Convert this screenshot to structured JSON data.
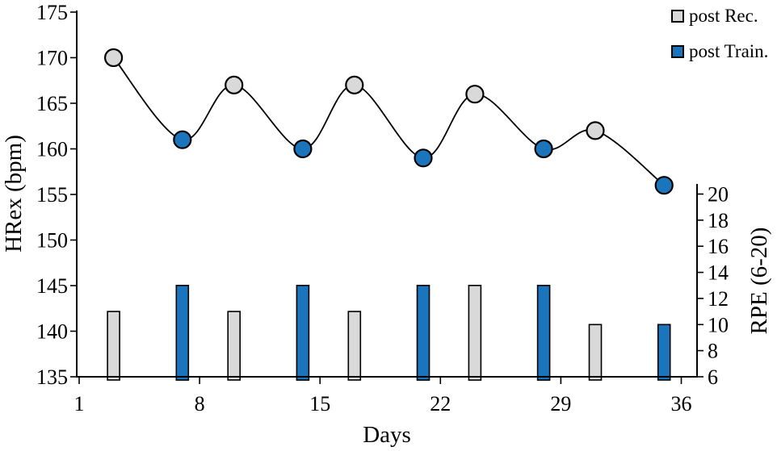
{
  "chart_data": {
    "type": "combo-line-bar",
    "title": "",
    "xlabel": "Days",
    "ylabel_left": "HRex (bpm)",
    "ylabel_right": "RPE (6-20)",
    "xlim": [
      1,
      36
    ],
    "x_ticks": [
      1,
      8,
      15,
      22,
      29,
      36
    ],
    "ylim_left": [
      135,
      175
    ],
    "yticks_left": [
      135,
      140,
      145,
      150,
      155,
      160,
      165,
      170,
      175
    ],
    "ylim_right": [
      6,
      20
    ],
    "yticks_right": [
      6,
      8,
      10,
      12,
      14,
      16,
      18,
      20
    ],
    "grid": false,
    "legend_position": "top-right",
    "days": [
      3,
      7,
      10,
      14,
      17,
      21,
      24,
      28,
      31,
      35
    ],
    "series": [
      {
        "name": "HRex",
        "type": "line",
        "axis": "left",
        "values": [
          170,
          161,
          167,
          160,
          167,
          159,
          166,
          160,
          162,
          156
        ],
        "point_types": [
          "rec",
          "train",
          "rec",
          "train",
          "rec",
          "train",
          "rec",
          "train",
          "rec",
          "train"
        ]
      },
      {
        "name": "RPE",
        "type": "bar",
        "axis": "right",
        "values": [
          11,
          13,
          11,
          13,
          11,
          13,
          13,
          13,
          10,
          10
        ],
        "bar_types": [
          "rec",
          "train",
          "rec",
          "train",
          "rec",
          "train",
          "rec",
          "train",
          "rec",
          "train"
        ]
      }
    ],
    "legend": [
      {
        "label": "post Rec.",
        "key": "rec",
        "color": "#d9d9d9"
      },
      {
        "label": "post Train.",
        "key": "train",
        "color": "#1b75bc"
      }
    ],
    "colors": {
      "rec": "#d9d9d9",
      "train": "#1b75bc",
      "line": "#000000",
      "outline": "#000000"
    }
  }
}
